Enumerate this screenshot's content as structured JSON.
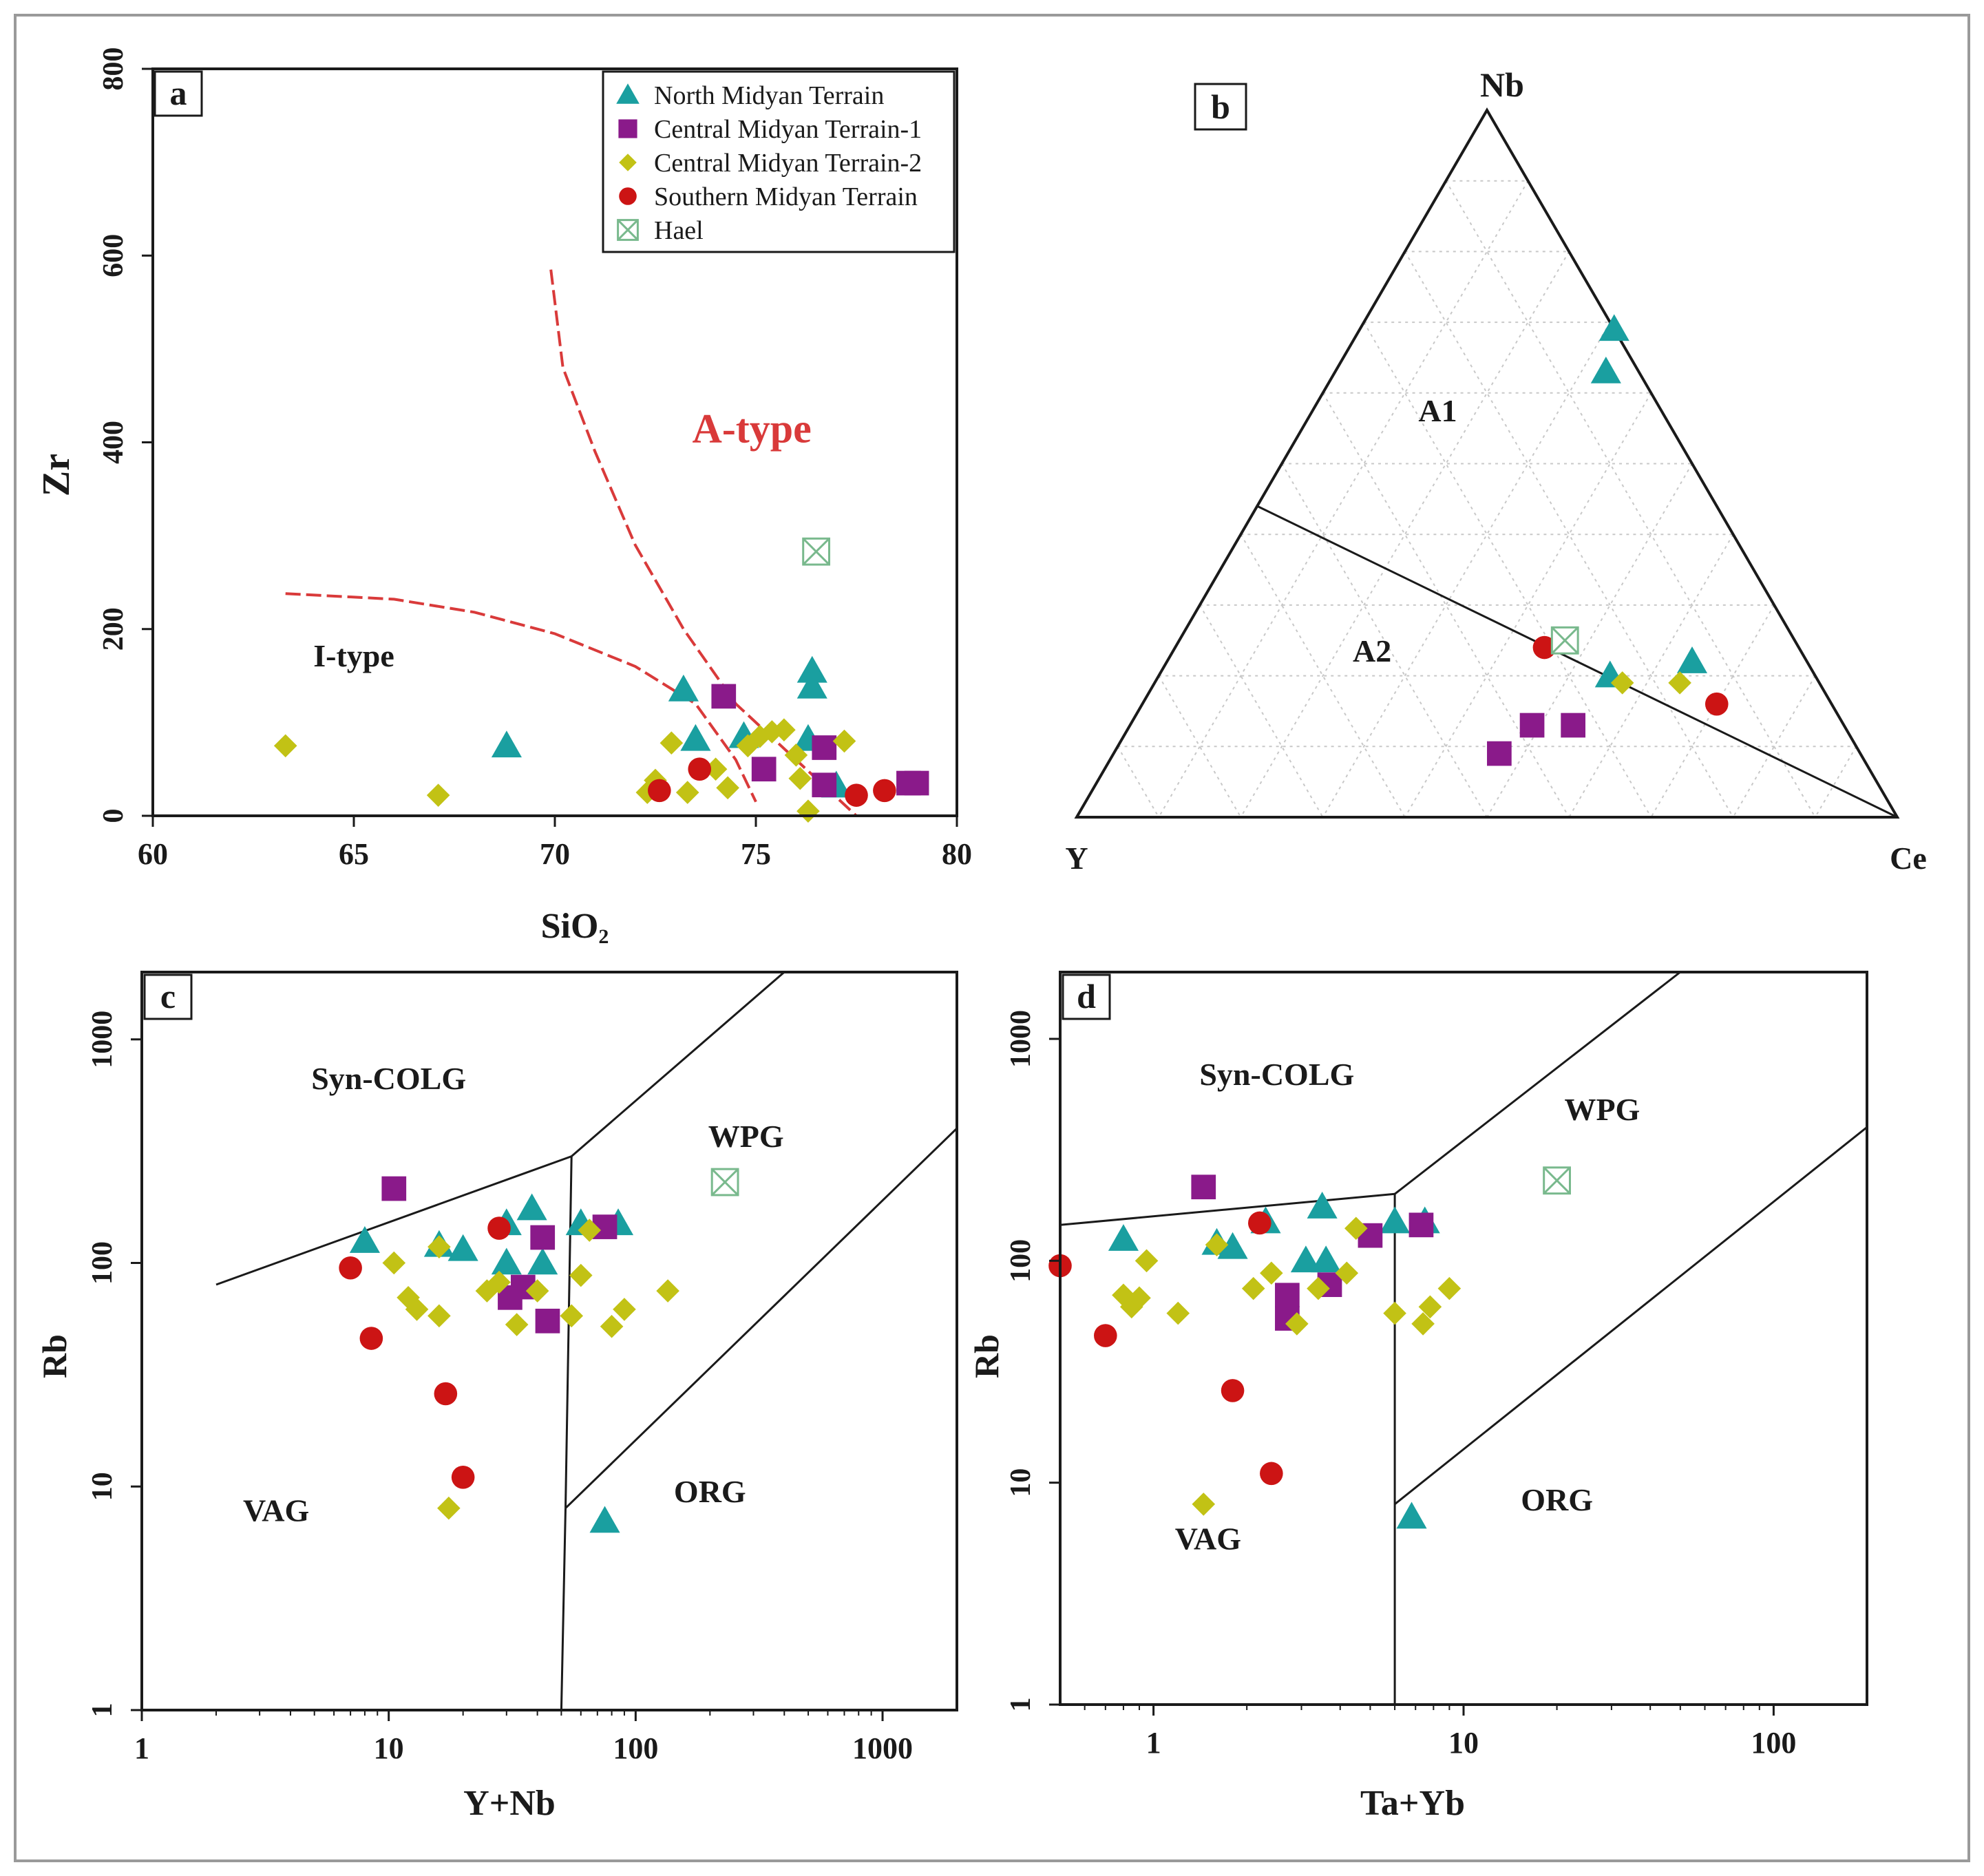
{
  "colors": {
    "north": "#1a9fa0",
    "central1": "#8a1a8a",
    "central2": "#c2c215",
    "southern": "#cc1414",
    "hael": "#79b98d",
    "boundary_red": "#d93a3a",
    "axis": "#1a1a1a",
    "grid": "#c8c8c8"
  },
  "legend": [
    {
      "key": "north",
      "label": "North Midyan Terrain",
      "symbol": "triangle",
      "color": "#1a9fa0"
    },
    {
      "key": "central1",
      "label": "Central Midyan Terrain-1",
      "symbol": "square",
      "color": "#8a1a8a"
    },
    {
      "key": "central2",
      "label": "Central Midyan Terrain-2",
      "symbol": "diamond",
      "color": "#c2c215"
    },
    {
      "key": "southern",
      "label": "Southern Midyan Terrain",
      "symbol": "circle",
      "color": "#cc1414"
    },
    {
      "key": "hael",
      "label": "Hael",
      "symbol": "crossed-square",
      "color": "#79b98d"
    }
  ],
  "chart_data": [
    {
      "panel": "a",
      "type": "scatter",
      "xlabel": "SiO",
      "xlabel_sub": "2",
      "ylabel": "Zr",
      "xlim": [
        60,
        80
      ],
      "ylim": [
        0,
        800
      ],
      "xticks": [
        60,
        65,
        70,
        75,
        80
      ],
      "yticks": [
        0,
        200,
        400,
        600,
        800
      ],
      "region_labels": [
        {
          "text": "A-type",
          "x": 74.9,
          "y": 400,
          "color": "#d93a3a"
        },
        {
          "text": "I-type",
          "x": 65.0,
          "y": 160,
          "color": "#1a1a1a"
        }
      ],
      "boundaries": [
        {
          "style": "dashed",
          "points": [
            [
              63.3,
              238
            ],
            [
              66,
              232
            ],
            [
              68,
              218
            ],
            [
              70,
              195
            ],
            [
              72,
              160
            ],
            [
              73.5,
              120
            ],
            [
              74.5,
              60
            ],
            [
              75,
              15
            ]
          ]
        },
        {
          "style": "dashed",
          "points": [
            [
              69.9,
              585
            ],
            [
              70.2,
              480
            ],
            [
              71,
              390
            ],
            [
              72,
              290
            ],
            [
              73.2,
              200
            ],
            [
              74.5,
              120
            ],
            [
              76,
              60
            ],
            [
              77.5,
              0
            ]
          ]
        }
      ],
      "series": [
        {
          "name": "north",
          "points": [
            [
              68.8,
              75
            ],
            [
              73.2,
              135
            ],
            [
              73.5,
              82
            ],
            [
              74.7,
              85
            ],
            [
              76.4,
              155
            ],
            [
              76.4,
              138
            ],
            [
              76.3,
              82
            ],
            [
              77.0,
              32
            ]
          ]
        },
        {
          "name": "central1",
          "points": [
            [
              74.2,
              128
            ],
            [
              75.2,
              50
            ],
            [
              76.7,
              73
            ],
            [
              76.7,
              33
            ],
            [
              78.8,
              35
            ],
            [
              79.0,
              35
            ]
          ]
        },
        {
          "name": "central2",
          "points": [
            [
              63.3,
              75
            ],
            [
              67.1,
              22
            ],
            [
              72.3,
              25
            ],
            [
              72.5,
              38
            ],
            [
              72.9,
              78
            ],
            [
              73.3,
              25
            ],
            [
              74.0,
              50
            ],
            [
              74.3,
              30
            ],
            [
              74.8,
              75
            ],
            [
              75.1,
              85
            ],
            [
              75.4,
              90
            ],
            [
              75.7,
              92
            ],
            [
              76.0,
              65
            ],
            [
              76.1,
              40
            ],
            [
              76.3,
              5
            ],
            [
              77.2,
              80
            ]
          ]
        },
        {
          "name": "southern",
          "points": [
            [
              72.6,
              27
            ],
            [
              73.6,
              50
            ],
            [
              77.5,
              22
            ],
            [
              78.2,
              27
            ]
          ]
        },
        {
          "name": "hael",
          "points": [
            [
              76.5,
              283
            ]
          ]
        }
      ]
    },
    {
      "panel": "b",
      "type": "ternary",
      "vertices": [
        "Nb",
        "Y",
        "Ce"
      ],
      "region_labels": [
        {
          "text": "A1",
          "nb": 0.56,
          "y": 0.28,
          "ce": 0.16
        },
        {
          "text": "A2",
          "nb": 0.22,
          "y": 0.53,
          "ce": 0.25
        }
      ],
      "boundary": {
        "from": {
          "nb": 0.44,
          "y": 0.56,
          "ce": 0.0
        },
        "to": {
          "nb": 0.0,
          "y": 0.0,
          "ce": 1.0
        }
      },
      "series": [
        {
          "name": "north",
          "points": [
            [
              0.69,
              0.0,
              0.31
            ],
            [
              0.63,
              0.04,
              0.33
            ],
            [
              0.2,
              0.25,
              0.55
            ],
            [
              0.22,
              0.14,
              0.64
            ]
          ]
        },
        {
          "name": "central1",
          "points": [
            [
              0.09,
              0.44,
              0.47
            ],
            [
              0.13,
              0.38,
              0.49
            ],
            [
              0.13,
              0.33,
              0.54
            ]
          ]
        },
        {
          "name": "central2",
          "points": [
            [
              0.19,
              0.24,
              0.57
            ],
            [
              0.19,
              0.17,
              0.64
            ]
          ]
        },
        {
          "name": "southern",
          "points": [
            [
              0.24,
              0.31,
              0.45
            ],
            [
              0.16,
              0.14,
              0.7
            ]
          ]
        },
        {
          "name": "hael",
          "points": [
            [
              0.25,
              0.28,
              0.47
            ]
          ]
        }
      ]
    },
    {
      "panel": "c",
      "type": "scatter",
      "scale": "log-log",
      "xlabel": "Y+Nb",
      "ylabel": "Rb",
      "xlim": [
        1,
        2000
      ],
      "ylim": [
        1,
        2000
      ],
      "xtick_labels": [
        "1",
        "10",
        "100",
        "1000"
      ],
      "ytick_labels": [
        "1",
        "10",
        "100",
        "1000"
      ],
      "xtick_values": [
        1,
        10,
        100,
        1000
      ],
      "ytick_values": [
        1,
        10,
        100,
        1000
      ],
      "region_labels": [
        {
          "text": "Syn-COLG",
          "x": 10,
          "y": 600
        },
        {
          "text": "WPG",
          "x": 280,
          "y": 330
        },
        {
          "text": "VAG",
          "x": 3.5,
          "y": 7
        },
        {
          "text": "ORG",
          "x": 200,
          "y": 8.5
        }
      ],
      "boundaries": [
        {
          "points": [
            [
              2,
              80
            ],
            [
              55,
              300
            ]
          ]
        },
        {
          "points": [
            [
              55,
              300
            ],
            [
              400,
              2000
            ]
          ]
        },
        {
          "points": [
            [
              55,
              300
            ],
            [
              52,
              8
            ]
          ]
        },
        {
          "points": [
            [
              52,
              8
            ],
            [
              50,
              1
            ]
          ]
        },
        {
          "points": [
            [
              52,
              8
            ],
            [
              2000,
              400
            ]
          ]
        }
      ],
      "series": [
        {
          "name": "north",
          "points": [
            [
              8,
              125
            ],
            [
              16,
              120
            ],
            [
              20,
              115
            ],
            [
              30,
              150
            ],
            [
              30,
              100
            ],
            [
              38,
              175
            ],
            [
              42,
              100
            ],
            [
              60,
              150
            ],
            [
              85,
              150
            ],
            [
              75,
              7
            ]
          ]
        },
        {
          "name": "central1",
          "points": [
            [
              10.5,
              215
            ],
            [
              31,
              70
            ],
            [
              35,
              78
            ],
            [
              42,
              130
            ],
            [
              44,
              55
            ],
            [
              75,
              145
            ]
          ]
        },
        {
          "name": "central2",
          "points": [
            [
              10.5,
              100
            ],
            [
              12,
              70
            ],
            [
              13,
              62
            ],
            [
              16,
              58
            ],
            [
              16,
              118
            ],
            [
              25,
              75
            ],
            [
              28,
              82
            ],
            [
              33,
              53
            ],
            [
              40,
              75
            ],
            [
              55,
              58
            ],
            [
              60,
              88
            ],
            [
              65,
              140
            ],
            [
              80,
              52
            ],
            [
              90,
              62
            ],
            [
              135,
              75
            ],
            [
              17.5,
              8
            ]
          ]
        },
        {
          "name": "southern",
          "points": [
            [
              7,
              95
            ],
            [
              8.5,
              46
            ],
            [
              17,
              26
            ],
            [
              20,
              11
            ],
            [
              28,
              143
            ]
          ]
        },
        {
          "name": "hael",
          "points": [
            [
              230,
              230
            ]
          ]
        }
      ]
    },
    {
      "panel": "d",
      "type": "scatter",
      "scale": "log-log",
      "xlabel": "Ta+Yb",
      "ylabel": "Rb",
      "xlim": [
        0.5,
        200
      ],
      "ylim": [
        1,
        2000
      ],
      "xtick_labels": [
        "1",
        "10",
        "100"
      ],
      "ytick_labels": [
        "1",
        "10",
        "100",
        "1000"
      ],
      "xtick_values": [
        1,
        10,
        100
      ],
      "ytick_values": [
        1,
        10,
        100,
        1000
      ],
      "region_labels": [
        {
          "text": "Syn-COLG",
          "x": 2.5,
          "y": 620
        },
        {
          "text": "WPG",
          "x": 28,
          "y": 430
        },
        {
          "text": "VAG",
          "x": 1.5,
          "y": 5
        },
        {
          "text": "ORG",
          "x": 20,
          "y": 7.5
        }
      ],
      "boundaries": [
        {
          "points": [
            [
              0.5,
              145
            ],
            [
              6,
              200
            ]
          ]
        },
        {
          "points": [
            [
              6,
              200
            ],
            [
              50,
              2000
            ]
          ]
        },
        {
          "points": [
            [
              6,
              200
            ],
            [
              6,
              1
            ]
          ]
        },
        {
          "points": [
            [
              6,
              8
            ],
            [
              200,
              400
            ]
          ]
        }
      ],
      "series": [
        {
          "name": "north",
          "points": [
            [
              0.8,
              125
            ],
            [
              1.6,
              120
            ],
            [
              1.8,
              115
            ],
            [
              2.3,
              150
            ],
            [
              3.1,
              100
            ],
            [
              3.5,
              175
            ],
            [
              3.6,
              100
            ],
            [
              6.0,
              150
            ],
            [
              7.5,
              150
            ],
            [
              6.8,
              7
            ]
          ]
        },
        {
          "name": "central1",
          "points": [
            [
              1.45,
              215
            ],
            [
              2.7,
              70
            ],
            [
              2.7,
              55
            ],
            [
              3.7,
              78
            ],
            [
              5.0,
              130
            ],
            [
              7.3,
              145
            ]
          ]
        },
        {
          "name": "central2",
          "points": [
            [
              0.8,
              70
            ],
            [
              0.85,
              62
            ],
            [
              0.9,
              68
            ],
            [
              0.95,
              100
            ],
            [
              1.2,
              58
            ],
            [
              1.6,
              118
            ],
            [
              2.1,
              75
            ],
            [
              2.4,
              88
            ],
            [
              2.9,
              52
            ],
            [
              3.4,
              75
            ],
            [
              4.2,
              88
            ],
            [
              4.5,
              140
            ],
            [
              6.0,
              58
            ],
            [
              7.4,
              52
            ],
            [
              7.8,
              62
            ],
            [
              9.0,
              75
            ],
            [
              1.45,
              8
            ]
          ]
        },
        {
          "name": "southern",
          "points": [
            [
              0.5,
              95
            ],
            [
              0.7,
              46
            ],
            [
              1.8,
              26
            ],
            [
              2.4,
              11
            ],
            [
              2.2,
              148
            ]
          ]
        },
        {
          "name": "hael",
          "points": [
            [
              20,
              230
            ]
          ]
        }
      ]
    }
  ]
}
